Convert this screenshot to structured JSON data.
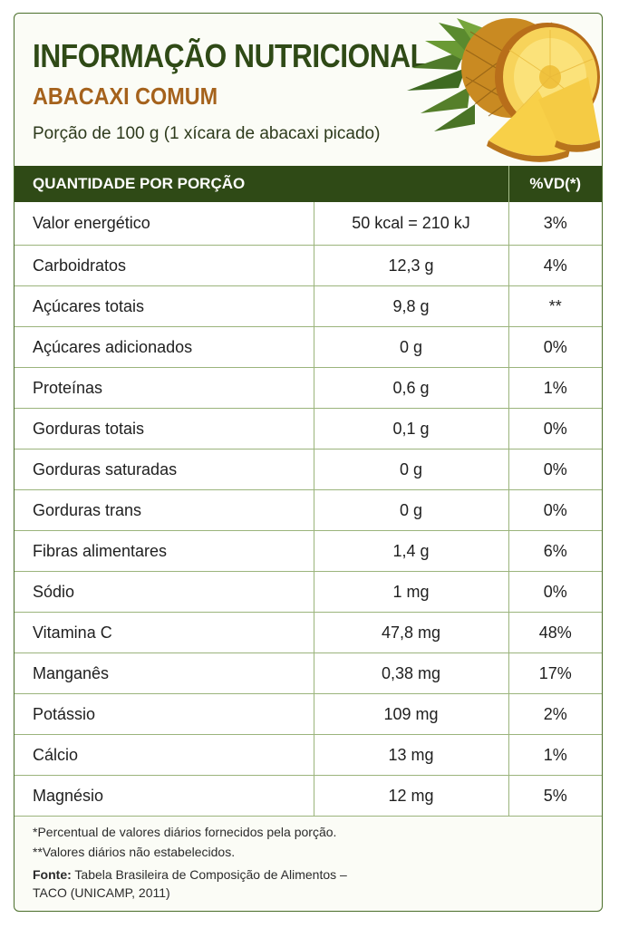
{
  "header": {
    "title": "INFORMAÇÃO NUTRICIONAL",
    "subtitle": "ABACAXI COMUM",
    "portion": "Porção de 100 g (1 xícara de abacaxi picado)",
    "image": "pineapple-slices-image"
  },
  "table": {
    "col_quantity": "QUANTIDADE POR PORÇÃO",
    "col_vd": "%VD(*)",
    "rows": [
      {
        "name": "Valor energético",
        "amount": "50 kcal = 210 kJ",
        "vd": "3%"
      },
      {
        "name": "Carboidratos",
        "amount": "12,3 g",
        "vd": "4%"
      },
      {
        "name": "Açúcares totais",
        "amount": "9,8 g",
        "vd": "**"
      },
      {
        "name": "Açúcares adicionados",
        "amount": "0 g",
        "vd": "0%"
      },
      {
        "name": "Proteínas",
        "amount": "0,6 g",
        "vd": "1%"
      },
      {
        "name": "Gorduras totais",
        "amount": "0,1 g",
        "vd": "0%"
      },
      {
        "name": "Gorduras saturadas",
        "amount": "0 g",
        "vd": "0%"
      },
      {
        "name": "Gorduras trans",
        "amount": "0 g",
        "vd": "0%"
      },
      {
        "name": "Fibras alimentares",
        "amount": "1,4 g",
        "vd": "6%"
      },
      {
        "name": "Sódio",
        "amount": "1 mg",
        "vd": "0%"
      },
      {
        "name": "Vitamina C",
        "amount": "47,8 mg",
        "vd": "48%"
      },
      {
        "name": "Manganês",
        "amount": "0,38 mg",
        "vd": "17%"
      },
      {
        "name": "Potássio",
        "amount": "109 mg",
        "vd": "2%"
      },
      {
        "name": "Cálcio",
        "amount": "13 mg",
        "vd": "1%"
      },
      {
        "name": "Magnésio",
        "amount": "12 mg",
        "vd": "5%"
      }
    ]
  },
  "footer": {
    "note1": "*Percentual de valores diários fornecidos pela porção.",
    "note2": "**Valores diários não estabelecidos.",
    "source_label": "Fonte:",
    "source_text": "Tabela Brasileira de Composição de Alimentos –",
    "source_text2": "TACO (UNICAMP, 2011)"
  },
  "colors": {
    "dark_green": "#2f4a16",
    "orange": "#a5621c",
    "border_green": "#9bb47c"
  }
}
